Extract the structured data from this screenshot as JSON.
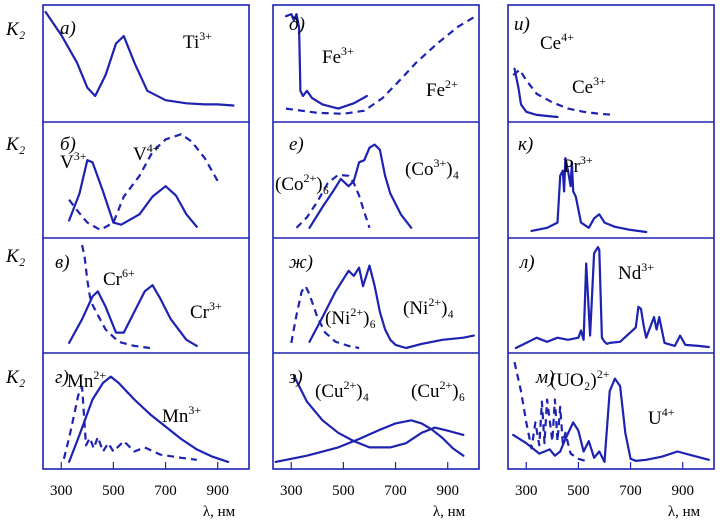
{
  "chart_data": {
    "type": "line",
    "ylabel": "K₂",
    "xlabel": "λ, нм",
    "xlim": [
      230,
      1020
    ],
    "x_ticks": [
      "300",
      "500",
      "700",
      "900"
    ],
    "colors": {
      "ink": "#1d22b0",
      "text": "#000000"
    },
    "panels": [
      {
        "id": "a",
        "letter": "а)",
        "column": 0,
        "row": 0,
        "series": [
          {
            "name": "Ti³⁺",
            "style": "solid",
            "x": [
              240,
              300,
              360,
              400,
              430,
              470,
              510,
              540,
              580,
              630,
              700,
              780,
              850,
              900,
              960
            ],
            "y": [
              1.0,
              0.78,
              0.52,
              0.28,
              0.2,
              0.4,
              0.7,
              0.77,
              0.52,
              0.25,
              0.16,
              0.13,
              0.12,
              0.12,
              0.11
            ]
          }
        ],
        "labels": [
          {
            "text": "Ti",
            "sup": "3+"
          }
        ]
      },
      {
        "id": "b",
        "letter": "б)",
        "column": 0,
        "row": 1,
        "series": [
          {
            "name": "V³⁺",
            "style": "solid",
            "x": [
              330,
              370,
              400,
              420,
              460,
              500,
              530,
              600,
              650,
              700,
              740,
              780,
              820
            ],
            "y": [
              0.12,
              0.38,
              0.7,
              0.68,
              0.4,
              0.1,
              0.08,
              0.18,
              0.35,
              0.45,
              0.36,
              0.18,
              0.06
            ]
          },
          {
            "name": "V⁴⁺",
            "style": "dashed",
            "x": [
              330,
              360,
              400,
              450,
              500,
              540,
              600,
              650,
              700,
              760,
              800,
              850,
              900
            ],
            "y": [
              0.32,
              0.22,
              0.1,
              0.03,
              0.1,
              0.35,
              0.55,
              0.78,
              0.9,
              0.95,
              0.88,
              0.72,
              0.5
            ]
          }
        ],
        "labels": [
          {
            "text": "V",
            "sup": "3+"
          },
          {
            "text": "V",
            "sup": "4+"
          }
        ]
      },
      {
        "id": "c",
        "letter": "в)",
        "column": 0,
        "row": 2,
        "series": [
          {
            "name": "Cr³⁺",
            "style": "solid",
            "x": [
              330,
              380,
              420,
              440,
              470,
              510,
              540,
              580,
              620,
              650,
              680,
              720,
              780,
              820
            ],
            "y": [
              0.05,
              0.28,
              0.5,
              0.55,
              0.4,
              0.15,
              0.15,
              0.35,
              0.55,
              0.61,
              0.48,
              0.28,
              0.08,
              0.02
            ]
          },
          {
            "name": "Cr⁶⁺",
            "style": "dashed",
            "x": [
              380,
              390,
              400,
              410,
              420,
              440,
              470,
              520,
              580,
              640
            ],
            "y": [
              1.0,
              0.88,
              0.66,
              0.5,
              0.42,
              0.32,
              0.18,
              0.06,
              0.02,
              0.0
            ]
          }
        ],
        "labels": [
          {
            "text": "Cr",
            "sup": "6+"
          },
          {
            "text": "Cr",
            "sup": "3+"
          }
        ]
      },
      {
        "id": "d",
        "letter": "г)",
        "column": 0,
        "row": 3,
        "series": [
          {
            "name": "Mn²⁺",
            "style": "dashed",
            "x": [
              310,
              330,
              350,
              365,
              380,
              395,
              410,
              425,
              440,
              460,
              480,
              500,
              540,
              580,
              620,
              680,
              760,
              820
            ],
            "y": [
              0.05,
              0.25,
              0.48,
              0.66,
              0.74,
              0.18,
              0.25,
              0.15,
              0.26,
              0.12,
              0.2,
              0.12,
              0.22,
              0.12,
              0.16,
              0.09,
              0.06,
              0.04
            ]
          },
          {
            "name": "Mn³⁺",
            "style": "solid",
            "x": [
              330,
              370,
              420,
              460,
              490,
              520,
              580,
              640,
              700,
              760,
              820,
              880,
              940
            ],
            "y": [
              0.02,
              0.28,
              0.62,
              0.78,
              0.84,
              0.78,
              0.62,
              0.48,
              0.36,
              0.24,
              0.14,
              0.07,
              0.02
            ]
          }
        ],
        "labels": [
          {
            "text": "Mn",
            "sup": "2+"
          },
          {
            "text": "Mn",
            "sup": "3+"
          }
        ]
      },
      {
        "id": "e",
        "letter": "д)",
        "column": 1,
        "row": 0,
        "series": [
          {
            "name": "Fe³⁺",
            "style": "solid",
            "x": [
              280,
              300,
              310,
              320,
              330,
              335,
              345,
              360,
              380,
              420,
              480,
              540,
              590
            ],
            "y": [
              0.96,
              0.98,
              0.92,
              0.98,
              0.85,
              0.25,
              0.2,
              0.25,
              0.18,
              0.12,
              0.08,
              0.13,
              0.2
            ]
          },
          {
            "name": "Fe²⁺",
            "style": "dashed",
            "x": [
              280,
              400,
              500,
              580,
              650,
              720,
              780,
              860,
              940,
              1000
            ],
            "y": [
              0.08,
              0.04,
              0.03,
              0.06,
              0.18,
              0.36,
              0.52,
              0.7,
              0.86,
              0.95
            ]
          }
        ],
        "labels": [
          {
            "text": "Fe",
            "sup": "3+"
          },
          {
            "text": "Fe",
            "sup": "2+"
          }
        ]
      },
      {
        "id": "f",
        "letter": "е)",
        "column": 1,
        "row": 1,
        "series": [
          {
            "name": "(Co²⁺)₆",
            "style": "dashed",
            "x": [
              320,
              360,
              400,
              440,
              480,
              520,
              540,
              560,
              580,
              600
            ],
            "y": [
              0.05,
              0.15,
              0.3,
              0.48,
              0.56,
              0.55,
              0.48,
              0.36,
              0.2,
              0.05
            ]
          },
          {
            "name": "(Co³⁺)₄",
            "style": "solid",
            "x": [
              370,
              420,
              460,
              490,
              520,
              540,
              560,
              580,
              600,
              620,
              640,
              660,
              680,
              700,
              720,
              760
            ],
            "y": [
              0.05,
              0.25,
              0.4,
              0.52,
              0.45,
              0.5,
              0.68,
              0.7,
              0.82,
              0.85,
              0.8,
              0.55,
              0.38,
              0.28,
              0.18,
              0.05
            ]
          }
        ],
        "labels": [
          {
            "text": "(Co",
            "sup": "2+",
            "after": ")₆"
          },
          {
            "text": "(Co",
            "sup": "3+",
            "after": ")₄"
          }
        ]
      },
      {
        "id": "g",
        "letter": "ж)",
        "column": 1,
        "row": 2,
        "series": [
          {
            "name": "(Ni²⁺)₆",
            "style": "dashed",
            "x": [
              300,
              320,
              340,
              355,
              370,
              400,
              430,
              470,
              520,
              560
            ],
            "y": [
              0.05,
              0.32,
              0.55,
              0.6,
              0.52,
              0.3,
              0.15,
              0.06,
              0.02,
              0.0
            ]
          },
          {
            "name": "(Ni²⁺)₄",
            "style": "solid",
            "x": [
              370,
              420,
              470,
              520,
              540,
              560,
              575,
              590,
              600,
              620,
              640,
              660,
              680,
              700,
              740,
              800,
              880,
              960,
              1000
            ],
            "y": [
              0.06,
              0.3,
              0.55,
              0.75,
              0.7,
              0.78,
              0.6,
              0.72,
              0.8,
              0.6,
              0.35,
              0.18,
              0.08,
              0.03,
              0.0,
              0.04,
              0.08,
              0.1,
              0.12
            ]
          }
        ],
        "labels": [
          {
            "text": "(Ni",
            "sup": "2+",
            "after": ")₆"
          },
          {
            "text": "(Ni",
            "sup": "2+",
            "after": ")₄"
          }
        ]
      },
      {
        "id": "h",
        "letter": "з)",
        "column": 1,
        "row": 3,
        "series": [
          {
            "name": "(Cu²⁺)₄",
            "style": "solid",
            "x": [
              310,
              360,
              420,
              480,
              540,
              600,
              680,
              740,
              800,
              850,
              900,
              960
            ],
            "y": [
              0.85,
              0.6,
              0.42,
              0.3,
              0.22,
              0.16,
              0.16,
              0.2,
              0.3,
              0.35,
              0.32,
              0.28
            ]
          },
          {
            "name": "(Cu²⁺)₆",
            "style": "solid",
            "x": [
              240,
              360,
              480,
              560,
              640,
              700,
              760,
              800,
              840,
              880,
              920,
              960
            ],
            "y": [
              0.02,
              0.08,
              0.16,
              0.24,
              0.33,
              0.39,
              0.42,
              0.39,
              0.33,
              0.25,
              0.15,
              0.08
            ]
          }
        ],
        "labels": [
          {
            "text": "(Cu",
            "sup": "2+",
            "after": ")₄"
          },
          {
            "text": "(Cu",
            "sup": "2+",
            "after": ")₆"
          }
        ]
      },
      {
        "id": "i",
        "letter": "и)",
        "column": 2,
        "row": 0,
        "series": [
          {
            "name": "Ce⁴⁺",
            "style": "dashed",
            "x": [
              250,
              275,
              300,
              340,
              400,
              460,
              520,
              580,
              640
            ],
            "y": [
              0.4,
              0.45,
              0.35,
              0.22,
              0.14,
              0.08,
              0.05,
              0.03,
              0.02
            ]
          },
          {
            "name": "Ce³⁺",
            "style": "solid",
            "x": [
              255,
              270,
              280,
              300,
              340,
              380,
              420
            ],
            "y": [
              0.46,
              0.28,
              0.12,
              0.05,
              0.02,
              0.01,
              0.0
            ]
          }
        ],
        "labels": [
          {
            "text": "Ce",
            "sup": "4+"
          },
          {
            "text": "Ce",
            "sup": "3+"
          }
        ]
      },
      {
        "id": "j",
        "letter": "к)",
        "column": 2,
        "row": 1,
        "series": [
          {
            "name": "Pr³⁺",
            "style": "solid",
            "x": [
              320,
              380,
              420,
              430,
              440,
              445,
              450,
              460,
              470,
              475,
              480,
              490,
              510,
              540,
              560,
              580,
              600,
              640,
              700,
              760
            ],
            "y": [
              0.02,
              0.05,
              0.1,
              0.55,
              0.6,
              0.4,
              0.72,
              0.6,
              0.45,
              0.68,
              0.4,
              0.35,
              0.1,
              0.05,
              0.14,
              0.18,
              0.1,
              0.06,
              0.03,
              0.01
            ]
          }
        ],
        "labels": [
          {
            "text": "Pr",
            "sup": "3+"
          }
        ]
      },
      {
        "id": "k",
        "letter": "л)",
        "column": 2,
        "row": 2,
        "series": [
          {
            "name": "Nd³⁺",
            "style": "solid",
            "x": [
              260,
              300,
              340,
              360,
              380,
              420,
              460,
              500,
              510,
              520,
              530,
              545,
              560,
              575,
              580,
              590,
              600,
              610,
              620,
              660,
              720,
              730,
              740,
              750,
              760,
              790,
              800,
              810,
              830,
              870,
              890,
              910,
              960,
              1000
            ],
            "y": [
              0.0,
              0.05,
              0.1,
              0.08,
              0.06,
              0.1,
              0.08,
              0.1,
              0.17,
              0.08,
              0.82,
              0.12,
              0.92,
              0.98,
              0.95,
              0.1,
              0.06,
              0.04,
              0.05,
              0.06,
              0.2,
              0.4,
              0.38,
              0.22,
              0.1,
              0.3,
              0.18,
              0.3,
              0.05,
              0.02,
              0.12,
              0.03,
              0.02,
              0.01
            ]
          }
        ],
        "labels": [
          {
            "text": "Nd",
            "sup": "3+"
          }
        ]
      },
      {
        "id": "l",
        "letter": "м)",
        "column": 2,
        "row": 3,
        "series": [
          {
            "name": "(UO₂)²⁺",
            "style": "dashed",
            "x": [
              255,
              280,
              300,
              320,
              335,
              350,
              360,
              370,
              380,
              400,
              410,
              420,
              430,
              440,
              450,
              470,
              500,
              540
            ],
            "y": [
              0.98,
              0.7,
              0.4,
              0.15,
              0.4,
              0.18,
              0.6,
              0.2,
              0.62,
              0.22,
              0.62,
              0.22,
              0.55,
              0.2,
              0.3,
              0.1,
              0.05,
              0.02
            ]
          },
          {
            "name": "U⁴⁺",
            "style": "solid",
            "x": [
              250,
              300,
              350,
              390,
              410,
              430,
              450,
              480,
              500,
              520,
              540,
              560,
              580,
              600,
              620,
              640,
              660,
              680,
              700,
              720,
              760,
              820,
              880,
              940,
              1000
            ],
            "y": [
              0.28,
              0.2,
              0.1,
              0.14,
              0.08,
              0.12,
              0.24,
              0.4,
              0.32,
              0.12,
              0.22,
              0.06,
              0.12,
              0.02,
              0.7,
              0.82,
              0.75,
              0.3,
              0.05,
              0.03,
              0.04,
              0.07,
              0.12,
              0.08,
              0.04
            ]
          }
        ],
        "labels": [
          {
            "text": "(UO₂)",
            "sup": "2+"
          },
          {
            "text": "U",
            "sup": "4+"
          }
        ]
      }
    ]
  }
}
